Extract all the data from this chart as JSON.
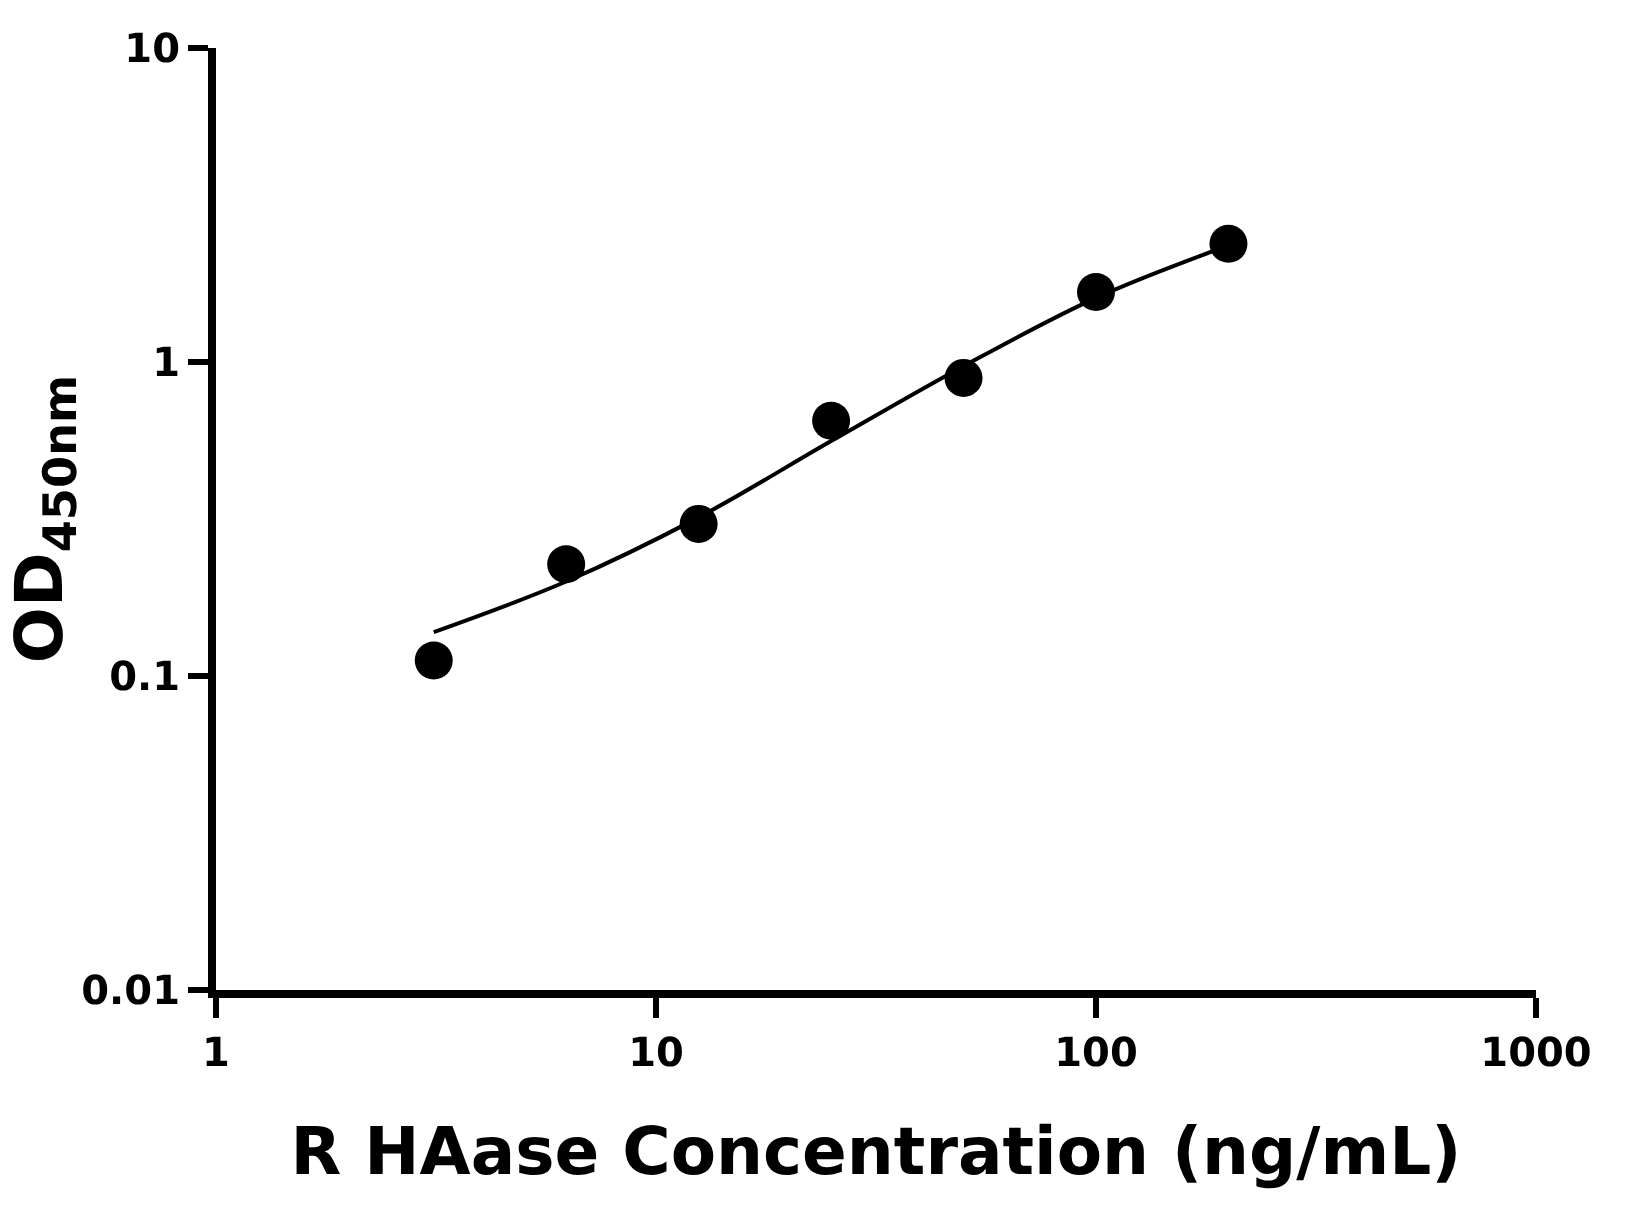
{
  "chart_data": {
    "type": "scatter",
    "xlabel": "R HAase Concentration (ng/mL)",
    "ylabel": "OD$_{450nm}$",
    "log": "xy",
    "grid": false,
    "xlim": [
      1,
      1000
    ],
    "xticks": [
      1,
      10,
      100,
      1000
    ],
    "ylim": [
      0.01,
      10
    ],
    "yticks": [
      0.01,
      0.1,
      1,
      10
    ],
    "series": [
      {
        "type": "scatter",
        "marker": "circle",
        "color": "#000000",
        "x": [
          3.125,
          6.25,
          12.5,
          25,
          50,
          100,
          200
        ],
        "values": [
          0.112,
          0.227,
          0.305,
          0.65,
          0.89,
          1.67,
          2.38
        ]
      },
      {
        "type": "line",
        "marker": "none",
        "color": "#000000",
        "x": [
          3.125,
          6.25,
          12.5,
          25,
          50,
          100,
          200
        ],
        "values": [
          0.138,
          0.2,
          0.32,
          0.56,
          0.97,
          1.6,
          2.35
        ]
      }
    ]
  }
}
